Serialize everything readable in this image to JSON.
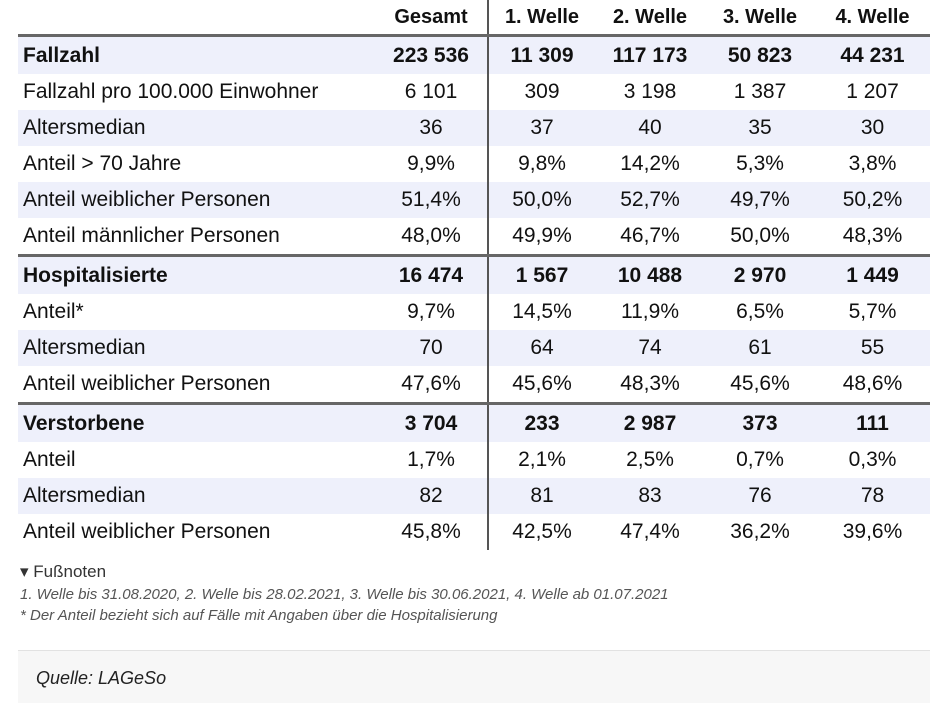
{
  "table": {
    "header": [
      "Gesamt",
      "1. Welle",
      "2. Welle",
      "3. Welle",
      "4. Welle"
    ],
    "sections": [
      {
        "head": [
          "Fallzahl",
          "223 536",
          "11 309",
          "117 173",
          "50 823",
          "44 231"
        ],
        "rows": [
          [
            "Fallzahl pro 100.000 Einwohner",
            "6 101",
            "309",
            "3 198",
            "1 387",
            "1 207"
          ],
          [
            "Altersmedian",
            "36",
            "37",
            "40",
            "35",
            "30"
          ],
          [
            "Anteil > 70 Jahre",
            "9,9%",
            "9,8%",
            "14,2%",
            "5,3%",
            "3,8%"
          ],
          [
            "Anteil weiblicher Personen",
            "51,4%",
            "50,0%",
            "52,7%",
            "49,7%",
            "50,2%"
          ],
          [
            "Anteil männlicher Personen",
            "48,0%",
            "49,9%",
            "46,7%",
            "50,0%",
            "48,3%"
          ]
        ]
      },
      {
        "head": [
          "Hospitalisierte",
          "16 474",
          "1 567",
          "10 488",
          "2 970",
          "1 449"
        ],
        "rows": [
          [
            "Anteil*",
            "9,7%",
            "14,5%",
            "11,9%",
            "6,5%",
            "5,7%"
          ],
          [
            "Altersmedian",
            "70",
            "64",
            "74",
            "61",
            "55"
          ],
          [
            "Anteil weiblicher Personen",
            "47,6%",
            "45,6%",
            "48,3%",
            "45,6%",
            "48,6%"
          ]
        ]
      },
      {
        "head": [
          "Verstorbene",
          "3 704",
          "233",
          "2 987",
          "373",
          "111"
        ],
        "rows": [
          [
            "Anteil",
            "1,7%",
            "2,1%",
            "2,5%",
            "0,7%",
            "0,3%"
          ],
          [
            "Altersmedian",
            "82",
            "81",
            "83",
            "76",
            "78"
          ],
          [
            "Anteil weiblicher Personen",
            "45,8%",
            "42,5%",
            "47,4%",
            "36,2%",
            "39,6%"
          ]
        ]
      }
    ]
  },
  "footnotes": {
    "toggle": "Fußnoten",
    "notes": [
      "1. Welle bis 31.08.2020, 2. Welle bis 28.02.2021, 3. Welle bis 30.06.2021, 4. Welle ab 01.07.2021",
      "* Der Anteil bezieht sich auf Fälle mit Angaben über die Hospitalisierung"
    ]
  },
  "source": "Quelle: LAGeSo"
}
